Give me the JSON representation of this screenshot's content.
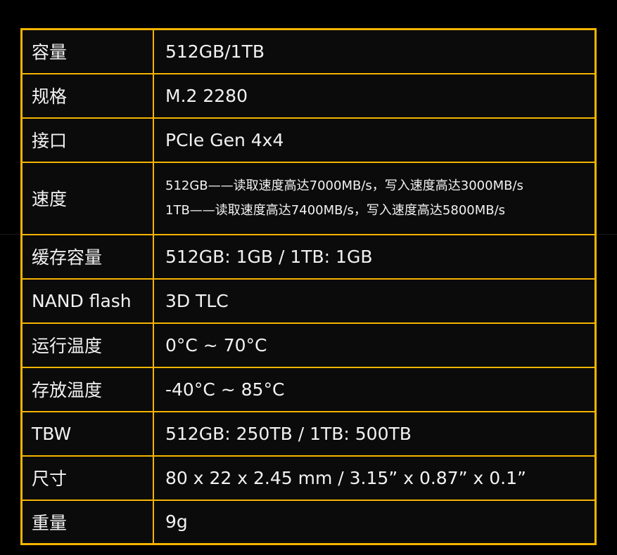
{
  "colors": {
    "border": "#f5b400",
    "background": "#000000",
    "text": "#f2f2f2"
  },
  "specs": [
    {
      "label": "容量",
      "value": "512GB/1TB"
    },
    {
      "label": "规格",
      "value": "M.2 2280"
    },
    {
      "label": "接口",
      "value": "PCIe Gen 4x4"
    },
    {
      "label": "速度",
      "lines": [
        "512GB——读取速度高达7000MB/s，写入速度高达3000MB/s",
        "1TB——读取速度高达7400MB/s，写入速度高达5800MB/s"
      ]
    },
    {
      "label": "缓存容量",
      "value": "512GB: 1GB / 1TB: 1GB"
    },
    {
      "label": "NAND flash",
      "value": "3D TLC"
    },
    {
      "label": "运行温度",
      "value": "0°C ~ 70°C"
    },
    {
      "label": "存放温度",
      "value": "-40°C ~ 85°C"
    },
    {
      "label": "TBW",
      "value": "512GB: 250TB / 1TB: 500TB"
    },
    {
      "label": "尺寸",
      "value": "80 x 22 x 2.45 mm / 3.15” x 0.87” x 0.1”"
    },
    {
      "label": "重量",
      "value": "9g"
    }
  ]
}
